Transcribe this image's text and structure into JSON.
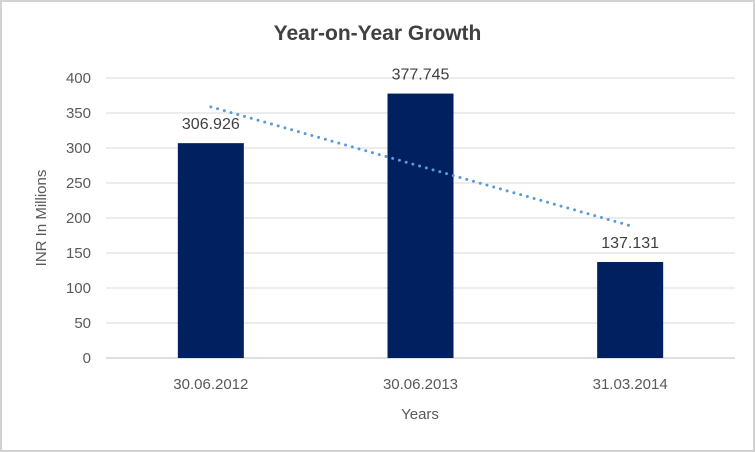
{
  "window": {
    "background": "#ffffff",
    "border_color": "#d2d2d2"
  },
  "chart_data": {
    "type": "bar",
    "title": "Year-on-Year Growth",
    "categories": [
      "30.06.2012",
      "30.06.2013",
      "31.03.2014"
    ],
    "values": [
      306.926,
      377.745,
      137.131
    ],
    "data_labels": [
      "306.926",
      "377.745",
      "137.131"
    ],
    "xlabel": "Years",
    "ylabel": "INR In Millions",
    "ylim": [
      0,
      400
    ],
    "ytick_interval": 50,
    "yticks": [
      0,
      50,
      100,
      150,
      200,
      250,
      300,
      350,
      400
    ],
    "grid": true,
    "legend": "none",
    "bar_color": "#002060",
    "trendline": {
      "type": "linear",
      "style": "dotted",
      "color": "#5b9bd5",
      "start_value": 358.8,
      "end_value": 189.0
    },
    "colors": {
      "title": "#404040",
      "tick_labels": "#595959",
      "data_labels": "#3f3f3f",
      "gridline": "#d9d9d9",
      "axis_line": "#bfbfbf"
    }
  }
}
